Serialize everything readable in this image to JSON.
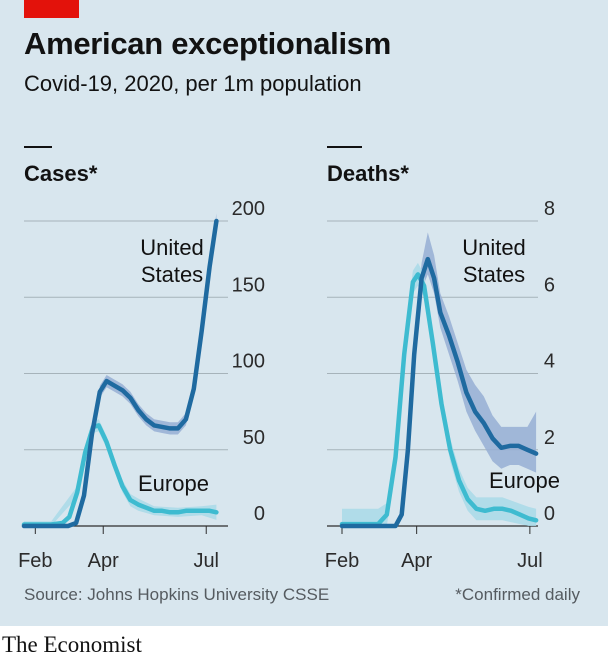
{
  "header": {
    "title": "American exceptionalism",
    "subtitle": "Covid-19, 2020, per 1m population"
  },
  "footer": {
    "source": "Source: Johns Hopkins University CSSE",
    "note": "*Confirmed daily",
    "brand": "The Economist"
  },
  "colors": {
    "background": "#d8e6ee",
    "united_states": "#1f6aa0",
    "europe": "#3ebbd0",
    "united_states_band": "#97aed4",
    "europe_band": "#a9d9e8",
    "gridline": "#a6b3ba",
    "brand_red": "#e3120b"
  },
  "chart_data": [
    {
      "type": "line",
      "title": "Cases*",
      "xlabel": "",
      "ylabel": "",
      "x_ticks": [
        "Feb",
        "Apr",
        "Jul"
      ],
      "y_ticks": [
        0,
        50,
        100,
        150,
        200
      ],
      "ylim": [
        0,
        200
      ],
      "y_axis_position": "right",
      "grid": true,
      "legend": "direct labels",
      "series": [
        {
          "name": "United States",
          "label_lines": [
            "United",
            "States"
          ],
          "points": [
            [
              "2020-01-22",
              0
            ],
            [
              "2020-02-15",
              0
            ],
            [
              "2020-03-01",
              0
            ],
            [
              "2020-03-08",
              2
            ],
            [
              "2020-03-15",
              20
            ],
            [
              "2020-03-22",
              60
            ],
            [
              "2020-03-29",
              88
            ],
            [
              "2020-04-04",
              95
            ],
            [
              "2020-04-11",
              92
            ],
            [
              "2020-04-18",
              89
            ],
            [
              "2020-04-25",
              84
            ],
            [
              "2020-05-02",
              76
            ],
            [
              "2020-05-09",
              70
            ],
            [
              "2020-05-16",
              66
            ],
            [
              "2020-05-23",
              65
            ],
            [
              "2020-05-30",
              64
            ],
            [
              "2020-06-06",
              64
            ],
            [
              "2020-06-13",
              70
            ],
            [
              "2020-06-20",
              90
            ],
            [
              "2020-06-27",
              128
            ],
            [
              "2020-07-04",
              170
            ],
            [
              "2020-07-10",
              200
            ]
          ],
          "band": [
            [
              "2020-03-29",
              84,
              92
            ],
            [
              "2020-04-04",
              91,
              99
            ],
            [
              "2020-04-11",
              88,
              96
            ],
            [
              "2020-04-18",
              85,
              93
            ],
            [
              "2020-04-25",
              80,
              88
            ],
            [
              "2020-05-02",
              72,
              80
            ],
            [
              "2020-05-09",
              66,
              74
            ],
            [
              "2020-05-16",
              62,
              70
            ],
            [
              "2020-05-23",
              61,
              69
            ],
            [
              "2020-05-30",
              60,
              68
            ],
            [
              "2020-06-06",
              60,
              68
            ],
            [
              "2020-06-13",
              66,
              74
            ],
            [
              "2020-06-20",
              86,
              94
            ],
            [
              "2020-06-27",
              124,
              132
            ],
            [
              "2020-07-04",
              166,
              174
            ],
            [
              "2020-07-10",
              195,
              205
            ]
          ]
        },
        {
          "name": "Europe",
          "label_lines": [
            "Europe"
          ],
          "points": [
            [
              "2020-01-22",
              1
            ],
            [
              "2020-02-15",
              1
            ],
            [
              "2020-02-25",
              2
            ],
            [
              "2020-03-02",
              6
            ],
            [
              "2020-03-09",
              22
            ],
            [
              "2020-03-16",
              48
            ],
            [
              "2020-03-23",
              65
            ],
            [
              "2020-03-28",
              66
            ],
            [
              "2020-04-04",
              55
            ],
            [
              "2020-04-11",
              40
            ],
            [
              "2020-04-18",
              26
            ],
            [
              "2020-04-25",
              17
            ],
            [
              "2020-05-02",
              14
            ],
            [
              "2020-05-09",
              12
            ],
            [
              "2020-05-16",
              10
            ],
            [
              "2020-05-23",
              10
            ],
            [
              "2020-05-30",
              9
            ],
            [
              "2020-06-06",
              9
            ],
            [
              "2020-06-13",
              10
            ],
            [
              "2020-06-20",
              10
            ],
            [
              "2020-06-27",
              10
            ],
            [
              "2020-07-04",
              10
            ],
            [
              "2020-07-10",
              9
            ]
          ],
          "band": [
            [
              "2020-01-22",
              0,
              3
            ],
            [
              "2020-02-15",
              0,
              3
            ],
            [
              "2020-03-09",
              19,
              26
            ],
            [
              "2020-03-16",
              44,
              52
            ],
            [
              "2020-03-23",
              61,
              69
            ],
            [
              "2020-03-28",
              62,
              70
            ],
            [
              "2020-04-04",
              51,
              59
            ],
            [
              "2020-04-11",
              36,
              44
            ],
            [
              "2020-04-18",
              22,
              30
            ],
            [
              "2020-04-25",
              13,
              21
            ],
            [
              "2020-05-02",
              10,
              18
            ],
            [
              "2020-05-16",
              7,
              13
            ],
            [
              "2020-06-06",
              6,
              12
            ],
            [
              "2020-06-27",
              7,
              13
            ],
            [
              "2020-07-10",
              4,
              14
            ]
          ]
        }
      ]
    },
    {
      "type": "line",
      "title": "Deaths*",
      "xlabel": "",
      "ylabel": "",
      "x_ticks": [
        "Feb",
        "Apr",
        "Jul"
      ],
      "y_ticks": [
        0,
        2,
        4,
        6,
        8
      ],
      "ylim": [
        0,
        8
      ],
      "y_axis_position": "right",
      "grid": true,
      "legend": "direct labels",
      "series": [
        {
          "name": "United States",
          "label_lines": [
            "United",
            "States"
          ],
          "points": [
            [
              "2020-02-01",
              0
            ],
            [
              "2020-03-05",
              0
            ],
            [
              "2020-03-15",
              0
            ],
            [
              "2020-03-20",
              0.3
            ],
            [
              "2020-03-25",
              2.0
            ],
            [
              "2020-03-30",
              4.5
            ],
            [
              "2020-04-05",
              6.5
            ],
            [
              "2020-04-10",
              7.0
            ],
            [
              "2020-04-15",
              6.5
            ],
            [
              "2020-04-20",
              5.6
            ],
            [
              "2020-04-27",
              5.0
            ],
            [
              "2020-05-04",
              4.3
            ],
            [
              "2020-05-11",
              3.5
            ],
            [
              "2020-05-18",
              3.0
            ],
            [
              "2020-05-25",
              2.7
            ],
            [
              "2020-06-01",
              2.3
            ],
            [
              "2020-06-08",
              2.05
            ],
            [
              "2020-06-15",
              2.1
            ],
            [
              "2020-06-22",
              2.1
            ],
            [
              "2020-06-29",
              2.0
            ],
            [
              "2020-07-06",
              1.9
            ]
          ],
          "band": [
            [
              "2020-03-30",
              4.1,
              4.9
            ],
            [
              "2020-04-05",
              6.2,
              6.9
            ],
            [
              "2020-04-10",
              6.6,
              7.7
            ],
            [
              "2020-04-15",
              6.1,
              7.1
            ],
            [
              "2020-04-20",
              5.2,
              6.1
            ],
            [
              "2020-04-27",
              4.5,
              5.5
            ],
            [
              "2020-05-04",
              3.8,
              4.8
            ],
            [
              "2020-05-11",
              3.0,
              4.1
            ],
            [
              "2020-05-18",
              2.5,
              3.7
            ],
            [
              "2020-05-25",
              2.1,
              3.4
            ],
            [
              "2020-06-01",
              1.7,
              2.9
            ],
            [
              "2020-06-08",
              1.5,
              2.6
            ],
            [
              "2020-06-15",
              1.6,
              2.6
            ],
            [
              "2020-06-22",
              1.6,
              2.6
            ],
            [
              "2020-06-29",
              1.5,
              2.6
            ],
            [
              "2020-07-06",
              1.4,
              3.0
            ]
          ]
        },
        {
          "name": "Europe",
          "label_lines": [
            "Europe"
          ],
          "points": [
            [
              "2020-02-01",
              0.05
            ],
            [
              "2020-03-01",
              0.05
            ],
            [
              "2020-03-08",
              0.3
            ],
            [
              "2020-03-15",
              1.8
            ],
            [
              "2020-03-22",
              4.5
            ],
            [
              "2020-03-29",
              6.4
            ],
            [
              "2020-04-02",
              6.6
            ],
            [
              "2020-04-07",
              6.3
            ],
            [
              "2020-04-14",
              4.8
            ],
            [
              "2020-04-21",
              3.2
            ],
            [
              "2020-04-28",
              2.0
            ],
            [
              "2020-05-05",
              1.2
            ],
            [
              "2020-05-12",
              0.7
            ],
            [
              "2020-05-19",
              0.45
            ],
            [
              "2020-05-26",
              0.4
            ],
            [
              "2020-06-02",
              0.45
            ],
            [
              "2020-06-09",
              0.45
            ],
            [
              "2020-06-16",
              0.4
            ],
            [
              "2020-06-23",
              0.3
            ],
            [
              "2020-06-30",
              0.2
            ],
            [
              "2020-07-06",
              0.15
            ]
          ],
          "band": [
            [
              "2020-02-01",
              0,
              0.45
            ],
            [
              "2020-03-01",
              0,
              0.45
            ],
            [
              "2020-03-08",
              0,
              0.6
            ],
            [
              "2020-03-15",
              1.5,
              2.1
            ],
            [
              "2020-03-22",
              4.2,
              4.8
            ],
            [
              "2020-03-29",
              6.1,
              6.7
            ],
            [
              "2020-04-02",
              6.3,
              6.9
            ],
            [
              "2020-04-07",
              6.0,
              6.6
            ],
            [
              "2020-04-14",
              4.5,
              5.1
            ],
            [
              "2020-04-21",
              2.9,
              3.5
            ],
            [
              "2020-04-28",
              1.7,
              2.3
            ],
            [
              "2020-05-05",
              0.9,
              1.5
            ],
            [
              "2020-05-12",
              0.4,
              1.0
            ],
            [
              "2020-05-19",
              0.15,
              0.75
            ],
            [
              "2020-06-09",
              0.15,
              0.75
            ],
            [
              "2020-06-30",
              0,
              0.5
            ],
            [
              "2020-07-06",
              0,
              0.45
            ]
          ]
        }
      ]
    }
  ]
}
